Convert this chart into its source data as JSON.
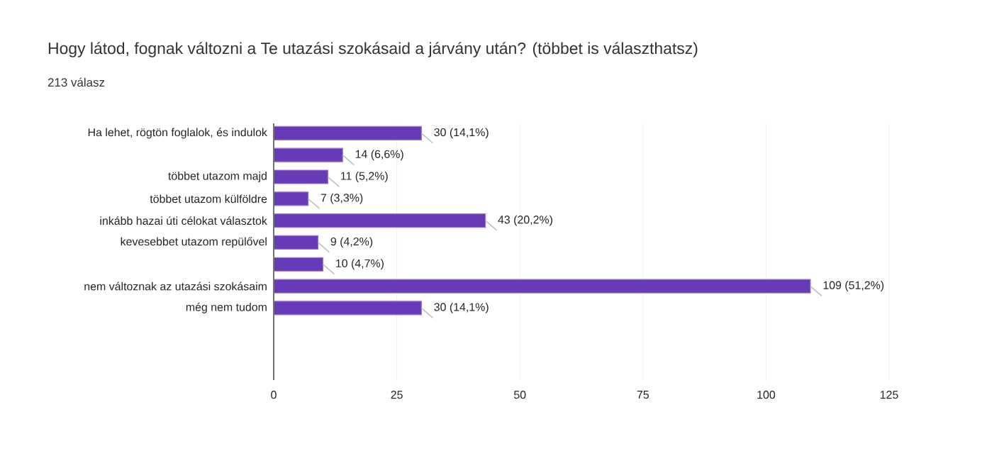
{
  "chart_data": {
    "type": "bar",
    "orientation": "horizontal",
    "title": "Hogy látod, fognak változni a Te utazási szokásaid a járvány után? (többet is választhatsz)",
    "subtitle": "213 válasz",
    "categories": [
      "Ha lehet, rögtön foglalok, és indulok",
      null,
      "többet utazom majd",
      "többet utazom külföldre",
      "inkább hazai úti célokat választok",
      "kevesebbet utazom repülővel",
      null,
      "nem változnak az utazási szokásaim",
      "még nem tudom"
    ],
    "values": [
      30,
      14,
      11,
      7,
      43,
      9,
      10,
      109,
      30
    ],
    "value_labels": [
      "30 (14,1%)",
      "14 (6,6%)",
      "11 (5,2%)",
      "7 (3,3%)",
      "43 (20,2%)",
      "9 (4,2%)",
      "10 (4,7%)",
      "109 (51,2%)",
      "30 (14,1%)"
    ],
    "color": "#673ab7",
    "xlim": [
      0,
      125
    ],
    "xticks": [
      0,
      25,
      50,
      75,
      100,
      125
    ],
    "grid": "x"
  }
}
